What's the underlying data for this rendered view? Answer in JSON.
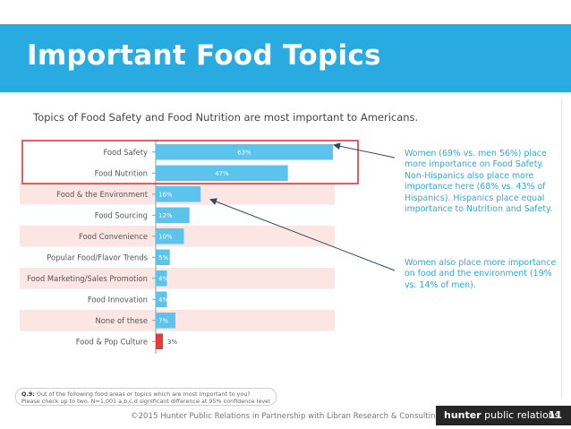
{
  "header": {
    "title": "Important Food Topics"
  },
  "subtitle": "Topics of Food Safety and Food Nutrition are most important to Americans.",
  "chart_data": {
    "type": "bar",
    "orientation": "horizontal",
    "categories": [
      "Food Safety",
      "Food Nutrition",
      "Food & the Environment",
      "Food Sourcing",
      "Food Convenience",
      "Popular Food/Flavor Trends",
      "Food Marketing/Sales Promotion",
      "Food Innovation",
      "None of these",
      "Food & Pop Culture"
    ],
    "values": [
      63,
      47,
      16,
      12,
      10,
      5,
      4,
      4,
      7,
      3
    ],
    "value_labels": [
      "63%",
      "47%",
      "16%",
      "12%",
      "10%",
      "5%",
      "4%",
      "4%",
      "7%",
      "3%"
    ],
    "xlim": [
      0,
      100
    ],
    "grid": false,
    "colors": {
      "bar": "#5bc3ec",
      "last_bar": "#e83a3a",
      "row_band": "#fbe6e3",
      "highlight_box": "#e2343d"
    }
  },
  "annotations": {
    "first": "Women (69% vs. men 56%) place more importance on Food Safety. Non-Hispanics also place more importance here (68% vs. 43% of Hispanics). Hispanics place equal importance to Nutrition and Safety.",
    "second": "Women also place more importance on food and the environment (19% vs. 14% of men)."
  },
  "footnote": {
    "label": "Q.9:",
    "text": "Out of the following food areas or topics which are most important to you?",
    "text2": "Please check up to two.  N=1,001 a,b,c,d significant difference at 95% confidence level"
  },
  "footer": {
    "text": "©2015 Hunter Public Relations in Partnership with Libran Research & Consulting",
    "brand_bold": "hunter",
    "brand_rest": " public relations",
    "page_number": "11"
  }
}
